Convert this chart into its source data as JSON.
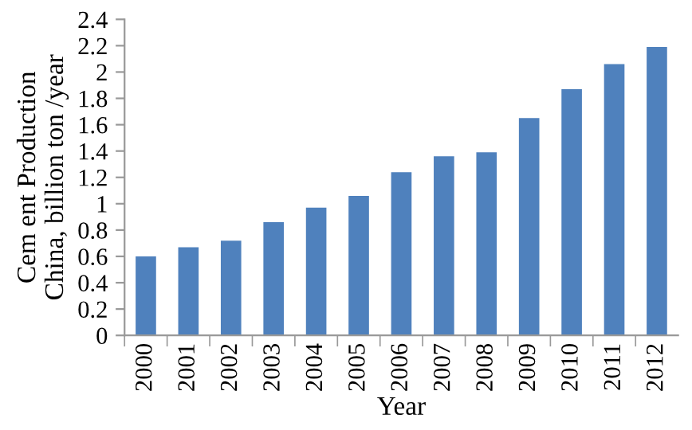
{
  "chart_data": {
    "type": "bar",
    "xlabel": "Year",
    "ylabel": "Cem ent Production\nChina, billion ton /year",
    "categories": [
      "2000",
      "2001",
      "2002",
      "2003",
      "2004",
      "2005",
      "2006",
      "2007",
      "2008",
      "2009",
      "2010",
      "2011",
      "2012"
    ],
    "values": [
      0.6,
      0.67,
      0.72,
      0.86,
      0.97,
      1.06,
      1.24,
      1.36,
      1.39,
      1.65,
      1.87,
      2.06,
      2.19
    ],
    "color": "#4f81bd",
    "ylim": [
      0,
      2.4
    ],
    "yticks": [
      0,
      0.2,
      0.4,
      0.6,
      0.8,
      1,
      1.2,
      1.4,
      1.6,
      1.8,
      2,
      2.2,
      2.4
    ],
    "grid": false
  }
}
